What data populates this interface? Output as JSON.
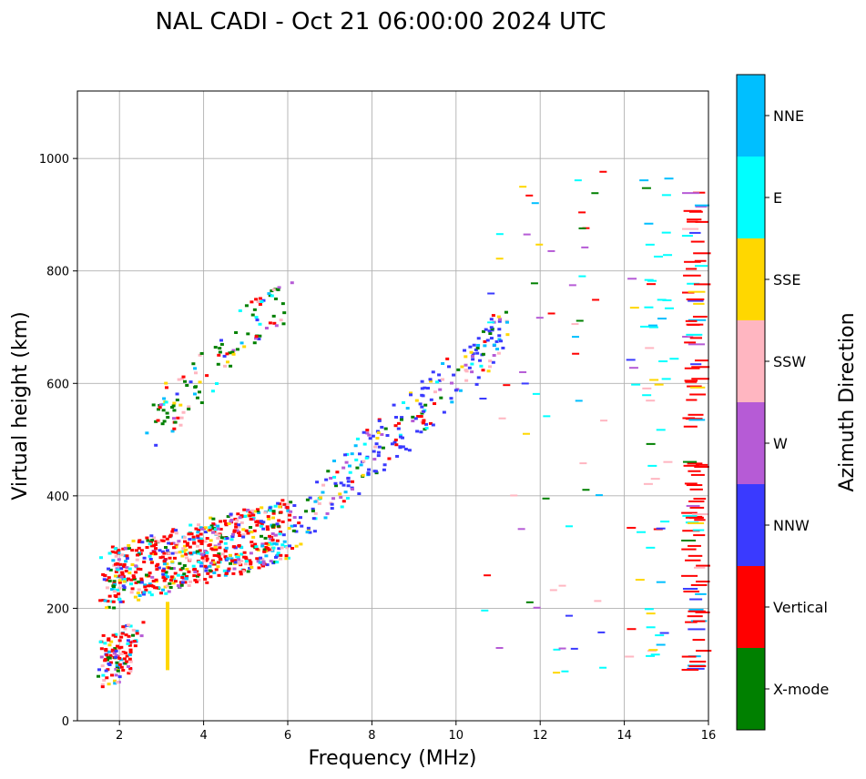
{
  "chart_data": {
    "type": "scatter",
    "title": "NAL CADI - Oct 21 06:00:00 2024 UTC",
    "xlabel": "Frequency (MHz)",
    "ylabel": "Virtual height (km)",
    "xlim": [
      1,
      16
    ],
    "ylim": [
      0,
      1120
    ],
    "xticks": [
      2,
      4,
      6,
      8,
      10,
      12,
      14,
      16
    ],
    "yticks": [
      0,
      200,
      400,
      600,
      800,
      1000
    ],
    "grid": true,
    "colorbar": {
      "title": "Azimuth Direction",
      "categories": [
        "X-mode",
        "Vertical",
        "NNW",
        "W",
        "SSW",
        "SSE",
        "E",
        "NNE"
      ],
      "colors": [
        "#008000",
        "#ff0000",
        "#3a3aff",
        "#b65bd6",
        "#ffb6c1",
        "#ffd700",
        "#00ffff",
        "#00bfff"
      ]
    },
    "echo_traces": [
      {
        "name": "low E echoes",
        "from": [
          1.5,
          100
        ],
        "to": [
          2.4,
          130
        ],
        "dominant": "Vertical"
      },
      {
        "name": "main F trace",
        "from": [
          1.6,
          250
        ],
        "to": [
          6.0,
          340
        ],
        "dominant": "Vertical"
      },
      {
        "name": "oblique F trace",
        "from": [
          6.0,
          340
        ],
        "to": [
          11.2,
          690
        ],
        "dominant": "NNW"
      },
      {
        "name": "multi-hop trace",
        "from": [
          2.7,
          520
        ],
        "to": [
          6.0,
          760
        ],
        "dominant": "X-mode"
      },
      {
        "name": "vertical spike",
        "from": [
          3.1,
          90
        ],
        "to": [
          3.1,
          205
        ],
        "dominant": "SSE"
      },
      {
        "name": "high frequency column",
        "from": [
          15.5,
          80
        ],
        "to": [
          15.5,
          970
        ],
        "dominant": "Vertical"
      }
    ]
  }
}
